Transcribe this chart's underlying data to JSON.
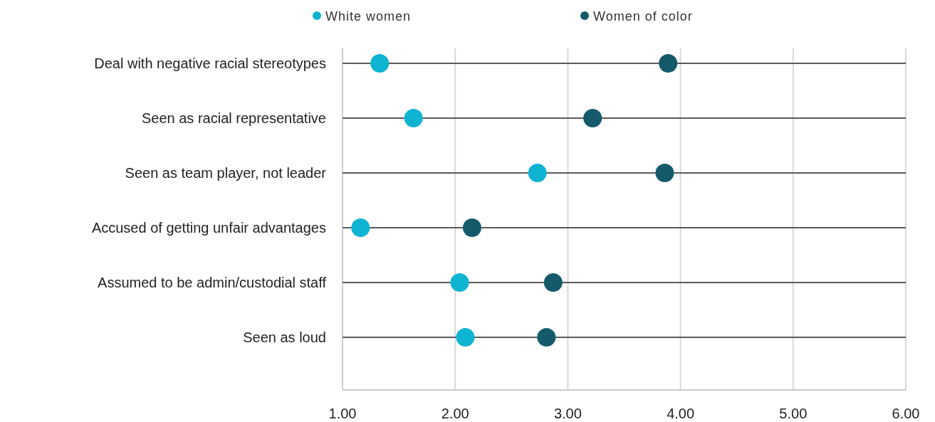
{
  "chart_data": {
    "type": "scatter",
    "orientation": "horizontal",
    "categories": [
      "Deal with negative racial stereotypes",
      "Seen as racial representative",
      "Seen as team player, not leader",
      "Accused of getting unfair advantages",
      "Assumed to be admin/custodial staff",
      "Seen as loud"
    ],
    "series": [
      {
        "name": "White women",
        "color": "#0eb4d2",
        "values": [
          1.33,
          1.63,
          2.73,
          1.16,
          2.04,
          2.09
        ]
      },
      {
        "name": "Women of color",
        "color": "#155a6a",
        "values": [
          3.89,
          3.22,
          3.86,
          2.15,
          2.87,
          2.81
        ]
      }
    ],
    "xlim": [
      1,
      6
    ],
    "xticks": [
      {
        "value": 1,
        "label": "1.00"
      },
      {
        "value": 2,
        "label": "2.00"
      },
      {
        "value": 3,
        "label": "3.00"
      },
      {
        "value": 4,
        "label": "4.00"
      },
      {
        "value": 5,
        "label": "5.00"
      },
      {
        "value": 6,
        "label": "6.00"
      }
    ],
    "grid": true,
    "legend": "top",
    "marker": "circle"
  }
}
